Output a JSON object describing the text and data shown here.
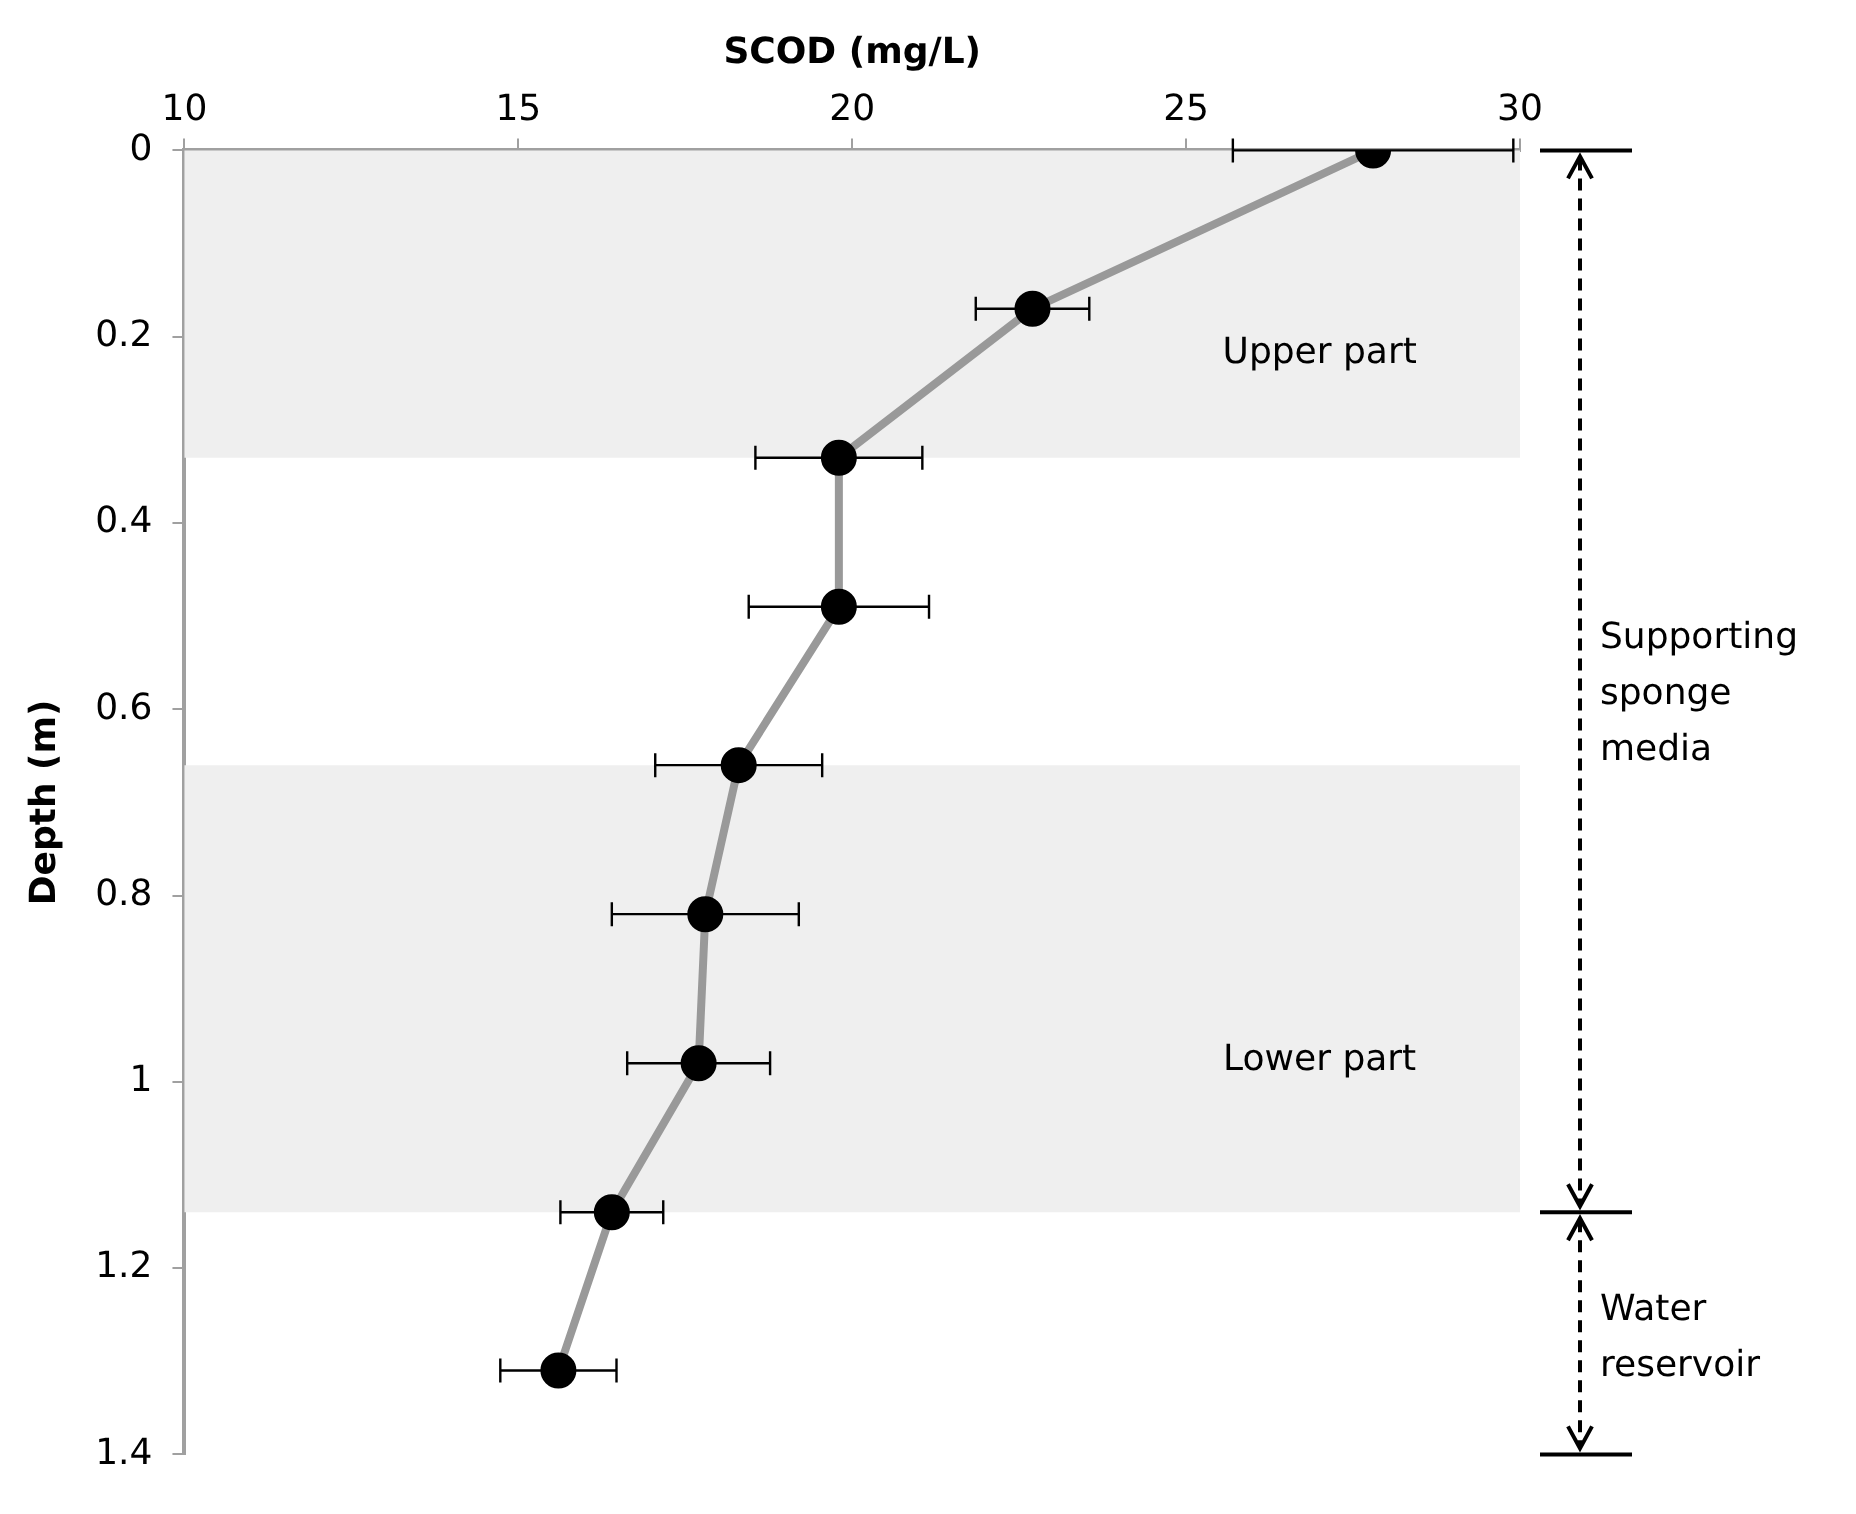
{
  "chart_data": {
    "type": "line",
    "xlabel": "SCOD (mg/L)",
    "ylabel": "Depth (m)",
    "x": [
      27.8,
      22.7,
      19.8,
      19.8,
      18.3,
      17.8,
      17.7,
      16.4,
      15.6
    ],
    "series": [
      {
        "color": "#999999",
        "values": [
          0,
          0.17,
          0.33,
          0.49,
          0.66,
          0.82,
          0.98,
          1.14,
          1.31
        ],
        "xerrors": [
          2.1,
          0.85,
          1.25,
          1.35,
          1.25,
          1.4,
          1.07,
          0.77,
          0.87
        ]
      }
    ],
    "xlim": [
      10,
      30
    ],
    "xticks": [
      10,
      15,
      20,
      25,
      30
    ],
    "ylim": [
      1.4,
      0
    ],
    "yticks": [
      0,
      0.2,
      0.4,
      0.6,
      0.8,
      1,
      1.2,
      1.4
    ],
    "bands": [
      {
        "axis": "y",
        "from": 0,
        "to": 0.33,
        "label": "Upper part",
        "color": "#efefef"
      },
      {
        "axis": "y",
        "from": 0.66,
        "to": 1.14,
        "label": "Lower part",
        "color": "#efefef"
      }
    ],
    "annotations": [
      "Supporting sponge media",
      "Water reservoir"
    ],
    "marker": "circle",
    "line_style": "solid",
    "grid": false,
    "legend": false
  }
}
